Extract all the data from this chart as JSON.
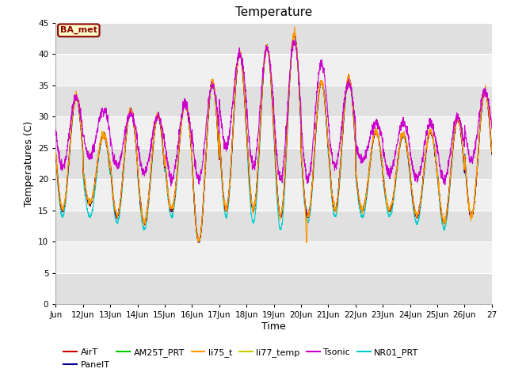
{
  "title": "Temperature",
  "ylabel": "Temperatures (C)",
  "xlabel": "Time",
  "annotation": "BA_met",
  "ylim": [
    0,
    45
  ],
  "yticks": [
    0,
    5,
    10,
    15,
    20,
    25,
    30,
    35,
    40,
    45
  ],
  "series_colors": {
    "AirT": "#cc0000",
    "PanelT": "#000099",
    "AM25T_PRT": "#00cc00",
    "li75_t": "#ff9900",
    "li77_temp": "#cccc00",
    "Tsonic": "#cc00cc",
    "NR01_PRT": "#00cccc"
  },
  "x_tick_labels": [
    "Jun",
    "12Jun",
    "13Jun",
    "14Jun",
    "15Jun",
    "16Jun",
    "17Jun",
    "18Jun",
    "19Jun",
    "20Jun",
    "21Jun",
    "22Jun",
    "23Jun",
    "24Jun",
    "25Jun",
    "26Jun",
    "27"
  ],
  "background_color": "#ffffff",
  "axes_bg_light": "#f0f0f0",
  "axes_bg_dark": "#e0e0e0",
  "grid_color": "#ffffff"
}
